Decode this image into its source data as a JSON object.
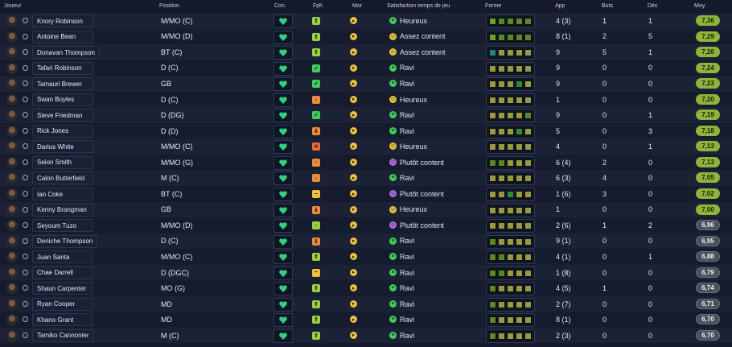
{
  "headers": {
    "joueur": "Joueur",
    "position": "Position",
    "con": "Con.",
    "fph": "Fph",
    "mor": "Mor",
    "satisfaction": "Satisfaction temps de jeu",
    "forme": "Forme",
    "app": "App",
    "buts": "Buts",
    "dec": "Déc",
    "moy": "Moy."
  },
  "colors": {
    "good": "#2fd47a",
    "moy_high": "#8fb43a",
    "moy_low": "#4a505c"
  },
  "rows": [
    {
      "name": "Knory Robinson",
      "position": "M/MO (C)",
      "fph": "up2",
      "sat_icon": "green",
      "sat": "Heureux",
      "forme": [
        "l",
        "m",
        "m",
        "m",
        "m"
      ],
      "app": "4 (3)",
      "buts": "1",
      "dec": "1",
      "moy": "7,36",
      "hi": true
    },
    {
      "name": "Antoine Bean",
      "position": "M/MO (D)",
      "fph": "up2",
      "sat_icon": "yellow",
      "sat": "Assez content",
      "forme": [
        "l",
        "m",
        "m",
        "m",
        "m"
      ],
      "app": "8 (1)",
      "buts": "2",
      "dec": "5",
      "moy": "7,29",
      "hi": true
    },
    {
      "name": "Donavan Thompson",
      "position": "BT (C)",
      "fph": "up2",
      "sat_icon": "yellow",
      "sat": "Assez content",
      "forme": [
        "t",
        "o",
        "o",
        "o",
        "o"
      ],
      "app": "9",
      "buts": "5",
      "dec": "1",
      "moy": "7,26",
      "hi": true
    },
    {
      "name": "Tafari Robinson",
      "position": "D (C)",
      "fph": "check",
      "sat_icon": "green",
      "sat": "Ravi",
      "forme": [
        "o",
        "o",
        "o",
        "o",
        "o"
      ],
      "app": "9",
      "buts": "0",
      "dec": "0",
      "moy": "7,24",
      "hi": true
    },
    {
      "name": "Tamauri Brewer",
      "position": "GB",
      "fph": "check",
      "sat_icon": "green",
      "sat": "Ravi",
      "forme": [
        "o",
        "o",
        "o",
        "g",
        "o"
      ],
      "app": "9",
      "buts": "0",
      "dec": "0",
      "moy": "7,23",
      "hi": true
    },
    {
      "name": "Swan Boyles",
      "position": "D (C)",
      "fph": "down",
      "sat_icon": "yellow",
      "sat": "Heureux",
      "forme": [
        "o",
        "o",
        "o",
        "o",
        "o"
      ],
      "app": "1",
      "buts": "0",
      "dec": "0",
      "moy": "7,20",
      "hi": true
    },
    {
      "name": "Steve Friedman",
      "position": "D (DG)",
      "fph": "check",
      "sat_icon": "green",
      "sat": "Ravi",
      "forme": [
        "o",
        "o",
        "o",
        "o",
        "m"
      ],
      "app": "9",
      "buts": "0",
      "dec": "1",
      "moy": "7,19",
      "hi": true
    },
    {
      "name": "Rick Jones",
      "position": "D (D)",
      "fph": "down2",
      "sat_icon": "green",
      "sat": "Ravi",
      "forme": [
        "o",
        "o",
        "o",
        "g",
        "o"
      ],
      "app": "5",
      "buts": "0",
      "dec": "3",
      "moy": "7,18",
      "hi": true
    },
    {
      "name": "Darius White",
      "position": "M/MO (C)",
      "fph": "x",
      "sat_icon": "yellow",
      "sat": "Heureux",
      "forme": [
        "o",
        "o",
        "o",
        "o",
        "o"
      ],
      "app": "4",
      "buts": "0",
      "dec": "1",
      "moy": "7,13",
      "hi": true
    },
    {
      "name": "Seion Smith",
      "position": "M/MO (G)",
      "fph": "down",
      "sat_icon": "purple",
      "sat": "Plutôt content",
      "forme": [
        "m",
        "m",
        "o",
        "o",
        "o"
      ],
      "app": "6 (4)",
      "buts": "2",
      "dec": "0",
      "moy": "7,13",
      "hi": true
    },
    {
      "name": "Calon Butterfield",
      "position": "M (C)",
      "fph": "down",
      "sat_icon": "green",
      "sat": "Ravi",
      "forme": [
        "o",
        "o",
        "o",
        "o",
        "o"
      ],
      "app": "6 (3)",
      "buts": "4",
      "dec": "0",
      "moy": "7,05",
      "hi": true
    },
    {
      "name": "Ian Coke",
      "position": "BT (C)",
      "fph": "minus",
      "sat_icon": "purple",
      "sat": "Plutôt content",
      "forme": [
        "o",
        "o",
        "g",
        "o",
        "o"
      ],
      "app": "1 (6)",
      "buts": "3",
      "dec": "0",
      "moy": "7,02",
      "hi": true
    },
    {
      "name": "Kenny Brangman",
      "position": "GB",
      "fph": "down2",
      "sat_icon": "yellow",
      "sat": "Heureux",
      "forme": [
        "o",
        "o",
        "o",
        "o",
        "o"
      ],
      "app": "1",
      "buts": "0",
      "dec": "0",
      "moy": "7,00",
      "hi": true
    },
    {
      "name": "Seyoum Tuzo",
      "position": "M/MO (D)",
      "fph": "up",
      "sat_icon": "purple",
      "sat": "Plutôt content",
      "forme": [
        "o",
        "o",
        "o",
        "o",
        "o"
      ],
      "app": "2 (6)",
      "buts": "1",
      "dec": "2",
      "moy": "6,96",
      "hi": false
    },
    {
      "name": "Deniche Thompson",
      "position": "D (C)",
      "fph": "down2",
      "sat_icon": "green",
      "sat": "Ravi",
      "forme": [
        "m",
        "o",
        "o",
        "o",
        "o"
      ],
      "app": "9 (1)",
      "buts": "0",
      "dec": "0",
      "moy": "6,95",
      "hi": false
    },
    {
      "name": "Juan Santa",
      "position": "M/MO (C)",
      "fph": "up2",
      "sat_icon": "green",
      "sat": "Ravi",
      "forme": [
        "m",
        "m",
        "o",
        "o",
        "o"
      ],
      "app": "4 (1)",
      "buts": "0",
      "dec": "1",
      "moy": "6,88",
      "hi": false
    },
    {
      "name": "Chae Darrell",
      "position": "D (DGC)",
      "fph": "minus",
      "sat_icon": "green",
      "sat": "Ravi",
      "forme": [
        "m",
        "m",
        "o",
        "o",
        "o"
      ],
      "app": "1 (8)",
      "buts": "0",
      "dec": "0",
      "moy": "6,79",
      "hi": false
    },
    {
      "name": "Shaun Carpenter",
      "position": "MO (G)",
      "fph": "up2",
      "sat_icon": "green",
      "sat": "Ravi",
      "forme": [
        "m",
        "o",
        "o",
        "o",
        "o"
      ],
      "app": "4 (5)",
      "buts": "1",
      "dec": "0",
      "moy": "6,74",
      "hi": false
    },
    {
      "name": "Ryan Cooper",
      "position": "MD",
      "fph": "up2",
      "sat_icon": "green",
      "sat": "Ravi",
      "forme": [
        "m",
        "o",
        "o",
        "o",
        "o"
      ],
      "app": "2 (7)",
      "buts": "0",
      "dec": "0",
      "moy": "6,71",
      "hi": false
    },
    {
      "name": "Khano Grant",
      "position": "MD",
      "fph": "up2",
      "sat_icon": "green",
      "sat": "Ravi",
      "forme": [
        "m",
        "o",
        "o",
        "o",
        "o"
      ],
      "app": "8 (1)",
      "buts": "0",
      "dec": "0",
      "moy": "6,70",
      "hi": false
    },
    {
      "name": "Tamiko Cannonier",
      "position": "M (C)",
      "fph": "up2",
      "sat_icon": "green",
      "sat": "Ravi",
      "forme": [
        "m",
        "o",
        "o",
        "o",
        "o"
      ],
      "app": "2 (3)",
      "buts": "0",
      "dec": "0",
      "moy": "6,70",
      "hi": false
    }
  ]
}
